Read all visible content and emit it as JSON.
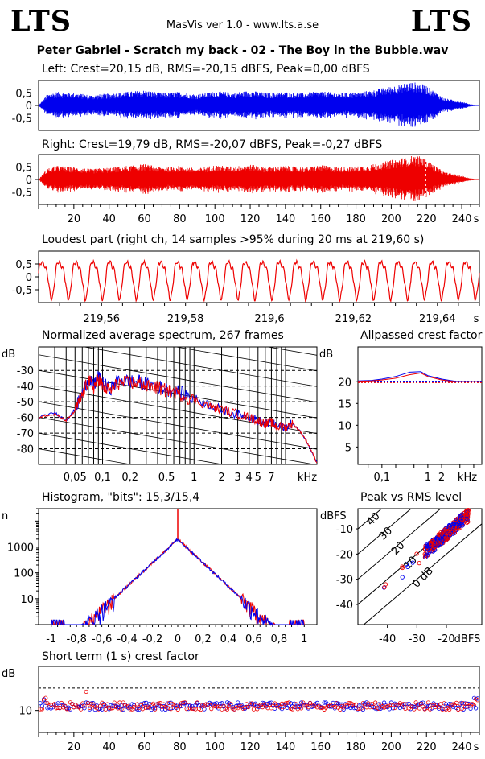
{
  "app": {
    "logo_left": "LTS",
    "logo_right": "LTS",
    "version": "MasVis ver 1.0 - www.lts.a.se",
    "track_title": "Peter Gabriel - Scratch my back - 02 - The Boy in the Bubble.wav"
  },
  "colors": {
    "left": "#0000ee",
    "right": "#ee0000",
    "grid": "#000000"
  },
  "chart_data": [
    {
      "id": "left",
      "type": "line",
      "title": "Left: Crest=20,15 dB, RMS=-20,15 dBFS, Peak=0,00 dBFS",
      "y_ticks": [
        "0,5",
        "0",
        "-0,5"
      ],
      "ylim": [
        -1,
        1
      ],
      "xlim": [
        0,
        250
      ],
      "envelope": {
        "t": [
          0,
          5,
          10,
          20,
          30,
          40,
          50,
          60,
          70,
          80,
          90,
          100,
          110,
          120,
          130,
          140,
          150,
          160,
          170,
          180,
          190,
          200,
          205,
          210,
          215,
          220,
          225,
          230,
          240,
          245,
          250
        ],
        "amp": [
          0.0,
          0.45,
          0.55,
          0.5,
          0.42,
          0.48,
          0.55,
          0.62,
          0.5,
          0.55,
          0.45,
          0.58,
          0.52,
          0.6,
          0.5,
          0.55,
          0.5,
          0.58,
          0.5,
          0.52,
          0.62,
          0.78,
          0.85,
          0.95,
          0.92,
          0.8,
          0.55,
          0.3,
          0.15,
          0.05,
          0.0
        ]
      }
    },
    {
      "id": "right",
      "type": "line",
      "title": "Right: Crest=19,79 dB, RMS=-20,07 dBFS, Peak=-0,27 dBFS",
      "y_ticks": [
        "0,5",
        "0",
        "-0,5"
      ],
      "x_ticks": [
        "20",
        "40",
        "60",
        "80",
        "100",
        "120",
        "140",
        "160",
        "180",
        "200",
        "220",
        "240",
        "s"
      ],
      "ylim": [
        -1,
        1
      ],
      "xlim": [
        0,
        250
      ],
      "marker_time": 219.6,
      "envelope": {
        "t": [
          0,
          5,
          10,
          20,
          30,
          40,
          50,
          60,
          70,
          80,
          90,
          100,
          110,
          120,
          130,
          140,
          150,
          160,
          170,
          180,
          190,
          200,
          205,
          210,
          215,
          220,
          225,
          230,
          240,
          245,
          250
        ],
        "amp": [
          0.0,
          0.45,
          0.55,
          0.5,
          0.42,
          0.48,
          0.55,
          0.62,
          0.5,
          0.55,
          0.45,
          0.58,
          0.52,
          0.6,
          0.5,
          0.55,
          0.5,
          0.58,
          0.5,
          0.52,
          0.62,
          0.78,
          0.85,
          0.95,
          0.96,
          0.8,
          0.55,
          0.3,
          0.15,
          0.05,
          0.0
        ]
      }
    },
    {
      "id": "loudest",
      "type": "line",
      "title": "Loudest part (right ch, 14 samples >95% during 20 ms at 219,60 s)",
      "y_ticks": [
        "0,5",
        "0",
        "-0,5"
      ],
      "x_ticks": [
        "219,56",
        "219,58",
        "219,6",
        "219,62",
        "219,64",
        "s"
      ],
      "ylim": [
        -1,
        1
      ],
      "xlim": [
        219.545,
        219.65
      ],
      "cycles": 26
    },
    {
      "id": "spectrum",
      "type": "line",
      "title": "Normalized average spectrum, 267 frames",
      "ylabel": "dB",
      "y_ticks": [
        "-30",
        "-40",
        "-50",
        "-60",
        "-70",
        "-80"
      ],
      "x_ticks": [
        "0,05",
        "0,1",
        "0,2",
        "0,5",
        "1",
        "2",
        "3",
        "4",
        "5",
        "7",
        "kHz"
      ],
      "ylim": [
        -90,
        -15
      ],
      "xlim": [
        0.02,
        22
      ],
      "x": [
        0.02,
        0.03,
        0.04,
        0.05,
        0.06,
        0.07,
        0.08,
        0.09,
        0.1,
        0.12,
        0.15,
        0.2,
        0.25,
        0.3,
        0.4,
        0.5,
        0.7,
        1,
        1.5,
        2,
        3,
        4,
        5,
        6,
        7,
        8,
        10,
        12,
        15,
        18,
        22
      ],
      "series": [
        {
          "name": "",
          "values": [
            -60,
            -57,
            -62,
            -55,
            -45,
            -35,
            -40,
            -34,
            -38,
            -42,
            -36,
            -37,
            -37,
            -39,
            -40,
            -42,
            -44,
            -48,
            -52,
            -55,
            -58,
            -59,
            -62,
            -64,
            -63,
            -66,
            -66,
            -64,
            -70,
            -78,
            -89
          ]
        },
        {
          "name": "",
          "values": [
            -60,
            -58,
            -62,
            -56,
            -46,
            -36,
            -41,
            -35,
            -40,
            -43,
            -38,
            -38,
            -38,
            -40,
            -41,
            -43,
            -45,
            -49,
            -53,
            -55,
            -58,
            -60,
            -62,
            -64,
            -63,
            -66,
            -66,
            -64,
            -70,
            -78,
            -89
          ]
        }
      ]
    },
    {
      "id": "allpass",
      "type": "line",
      "title": "Allpassed crest factor",
      "ylabel": "dB",
      "y_ticks": [
        "20",
        "15",
        "10",
        "5"
      ],
      "x_ticks": [
        "0,1",
        "1",
        "2",
        "kHz"
      ],
      "ylim": [
        1,
        28
      ],
      "xlim": [
        0.03,
        15
      ],
      "x": [
        0.03,
        0.06,
        0.1,
        0.2,
        0.4,
        0.7,
        1,
        2,
        4,
        8,
        15
      ],
      "series": [
        {
          "name": "",
          "values": [
            20.2,
            20.3,
            20.6,
            21.2,
            22.2,
            22.3,
            21.4,
            20.6,
            20.1,
            20.0,
            20.0
          ]
        },
        {
          "name": "",
          "values": [
            20.1,
            20.2,
            20.4,
            20.8,
            21.6,
            22.0,
            21.2,
            20.4,
            20.0,
            20.0,
            20.0
          ]
        }
      ]
    },
    {
      "id": "histogram",
      "type": "line",
      "title": "Histogram, \"bits\": 15,3/15,4",
      "ylabel": "n",
      "y_ticks": [
        "1000",
        "100",
        "10"
      ],
      "x_ticks": [
        "-1",
        "-0,8",
        "-0,6",
        "-0,4",
        "-0,2",
        "0",
        "0,2",
        "0,4",
        "0,6",
        "0,8",
        "1"
      ],
      "ylim": [
        1,
        30000
      ],
      "xlim": [
        -1.1,
        1.1
      ],
      "scale": "log",
      "peak_count": 2000
    },
    {
      "id": "peak_vs_rms",
      "type": "scatter",
      "title": "Peak vs RMS level",
      "ylabel": "dBFS",
      "y_ticks": [
        "-10",
        "-20",
        "-30",
        "-40"
      ],
      "x_ticks": [
        "-40",
        "-30",
        "-20",
        "dBFS"
      ],
      "crest_labels": [
        "40",
        "30",
        "20",
        "10",
        "0 dB"
      ],
      "xlim": [
        -50,
        -8
      ],
      "ylim": [
        -48,
        -2
      ],
      "cluster": {
        "rms_center": -20,
        "peak_center": -12
      }
    },
    {
      "id": "short_term",
      "type": "scatter",
      "title": "Short term (1 s) crest factor",
      "ylabel": "dB",
      "y_ticks": [
        "10"
      ],
      "x_ticks": [
        "20",
        "40",
        "60",
        "80",
        "100",
        "120",
        "140",
        "160",
        "180",
        "200",
        "220",
        "240",
        "s"
      ],
      "xlim": [
        0,
        250
      ],
      "ylim": [
        0,
        30
      ],
      "ref_lines": [
        20.15,
        19.79
      ],
      "mean": 12
    }
  ]
}
